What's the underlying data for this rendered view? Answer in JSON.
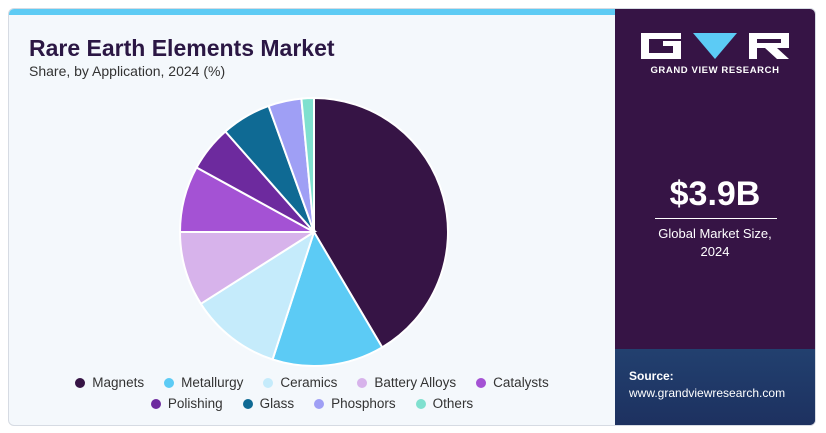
{
  "header": {
    "title": "Rare Earth Elements Market",
    "subtitle": "Share, by Application, 2024 (%)"
  },
  "chart_data": {
    "type": "pie",
    "categories": [
      "Magnets",
      "Metallurgy",
      "Ceramics",
      "Battery Alloys",
      "Catalysts",
      "Polishing",
      "Glass",
      "Phosphors",
      "Others"
    ],
    "values": [
      41.5,
      13.5,
      11.0,
      9.0,
      8.0,
      5.5,
      6.0,
      4.0,
      1.5
    ],
    "colors": [
      "#361445",
      "#5ccbf5",
      "#c5ebfb",
      "#d7b3eb",
      "#a452d4",
      "#6d2a9e",
      "#0f6a94",
      "#9f9ff5",
      "#7fe0cf"
    ],
    "title": "",
    "start": "top",
    "direction": "clockwise"
  },
  "sidebar": {
    "brand": "GRAND VIEW RESEARCH",
    "market_size": "$3.9B",
    "market_label_line1": "Global Market Size,",
    "market_label_line2": "2024",
    "source_label": "Source:",
    "source_url": "www.grandviewresearch.com"
  }
}
